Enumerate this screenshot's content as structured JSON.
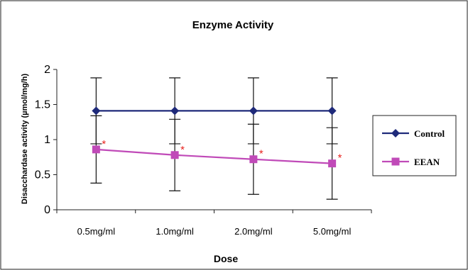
{
  "chart_data": {
    "type": "line",
    "title": "Enzyme Activity",
    "xlabel": "Dose",
    "ylabel": "Disacchardase activity (µmol/mg/h)",
    "categories": [
      "0.5mg/ml",
      "1.0mg/ml",
      "2.0mg/ml",
      "5.0mg/ml"
    ],
    "ylim": [
      0,
      2
    ],
    "yticks": [
      "0",
      "0.5",
      "1",
      "1.5",
      "2"
    ],
    "grid": false,
    "legend_position": "right",
    "series": [
      {
        "name": "Control",
        "color": "#1f2a7a",
        "marker": "diamond",
        "values": [
          1.41,
          1.41,
          1.41,
          1.41
        ],
        "error": [
          0.47,
          0.47,
          0.47,
          0.47
        ]
      },
      {
        "name": "EEAN",
        "color": "#c04ab8",
        "marker": "square",
        "values": [
          0.86,
          0.78,
          0.72,
          0.66
        ],
        "error": [
          0.48,
          0.51,
          0.5,
          0.51
        ],
        "annotations": [
          "*",
          "*",
          "*",
          "*"
        ]
      }
    ]
  }
}
